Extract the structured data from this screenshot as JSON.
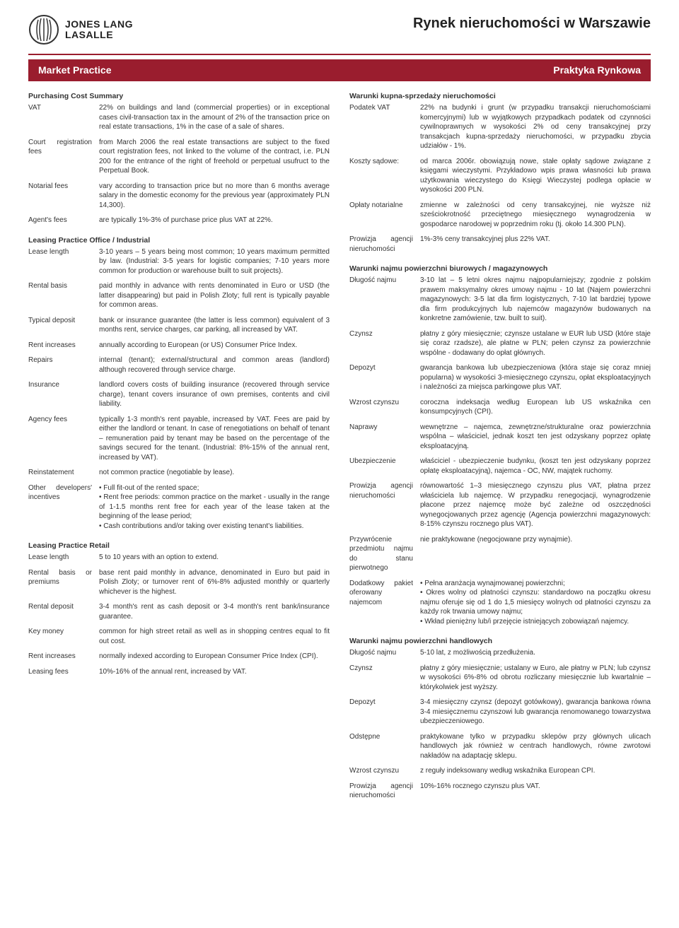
{
  "header": {
    "logo_line1": "JONES LANG",
    "logo_line2": "LASALLE",
    "page_title": "Rynek nieruchomości w Warszawie"
  },
  "section_bar": {
    "left": "Market Practice",
    "right": "Praktyka Rynkowa"
  },
  "left": {
    "purchasing": {
      "title": "Purchasing Cost Summary",
      "rows": [
        {
          "label": "VAT",
          "val": "22% on buildings and land (commercial properties) or in exceptional cases civil-transaction tax in the amount of 2% of the transaction price on real estate transactions, 1% in the case of a sale of shares."
        },
        {
          "label": "Court registration fees",
          "val": "from March 2006 the real estate transactions are subject to the fixed court registration fees, not linked to the volume of the contract, i.e. PLN 200 for the entrance of the right of freehold or perpetual usufruct to the Perpetual Book."
        },
        {
          "label": "Notarial fees",
          "val": "vary according to transaction price but no more than 6 months average salary in the domestic economy for the previous year (approximately PLN 14,300)."
        },
        {
          "label": "Agent's fees",
          "val": "are typically 1%-3% of purchase price plus VAT at 22%."
        }
      ]
    },
    "leasing_office": {
      "title": "Leasing Practice Office / Industrial",
      "rows": [
        {
          "label": "Lease length",
          "val": "3-10 years – 5 years being most common; 10 years maximum permitted by law. (Industrial: 3-5 years for logistic companies; 7-10 years more common for production or warehouse built to suit projects)."
        },
        {
          "label": "Rental basis",
          "val": "paid monthly in advance with rents denominated in Euro or USD (the latter disappearing) but paid in Polish Zloty; full rent is typically payable for common areas."
        },
        {
          "label": "Typical deposit",
          "val": "bank or insurance guarantee (the latter is less common) equivalent of 3 months rent, service charges, car parking, all increased by VAT."
        },
        {
          "label": "Rent increases",
          "val": "annually according to European (or US) Consumer Price Index."
        },
        {
          "label": "Repairs",
          "val": "internal (tenant); external/structural and common areas (landlord) although recovered through service charge."
        },
        {
          "label": "Insurance",
          "val": "landlord covers costs of building insurance (recovered through service charge), tenant covers insurance of own premises, contents and civil liability."
        },
        {
          "label": "Agency fees",
          "val": "typically 1-3 month's rent payable, increased by VAT. Fees are paid by either the landlord or tenant. In case of renegotiations on behalf of tenant – remuneration paid by tenant may be based on the percentage of the savings secured for the tenant. (Industrial: 8%-15% of the annual rent, increased by VAT)."
        },
        {
          "label": "Reinstatement",
          "val": "not common practice (negotiable by lease)."
        },
        {
          "label": "Other developers' incentives",
          "val": "• Full fit-out of the rented space;\n• Rent free periods: common practice on the market - usually in the range of 1-1.5 months rent free for each year of the lease taken at the beginning of the lease period;\n• Cash contributions and/or taking over existing tenant's liabilities."
        }
      ]
    },
    "leasing_retail": {
      "title": "Leasing Practice Retail",
      "rows": [
        {
          "label": "Lease length",
          "val": "5 to 10 years with an option to extend."
        },
        {
          "label": "Rental basis or premiums",
          "val": "base rent paid monthly in advance, denominated in Euro but paid in Polish Zloty; or turnover rent of 6%-8% adjusted monthly or quarterly whichever is the highest."
        },
        {
          "label": "Rental deposit",
          "val": "3-4 month's rent as cash deposit or 3-4 month's rent bank/insurance guarantee."
        },
        {
          "label": "Key money",
          "val": "common for high street retail as well as in shopping centres equal to fit out cost."
        },
        {
          "label": "Rent increases",
          "val": "normally indexed according to European Consumer Price Index (CPI)."
        },
        {
          "label": "Leasing fees",
          "val": "10%-16% of the annual rent, increased by VAT."
        }
      ]
    }
  },
  "right": {
    "purchasing": {
      "title": "Warunki kupna-sprzedaży nieruchomości",
      "rows": [
        {
          "label": "Podatek VAT",
          "val": "22% na budynki i grunt (w przypadku transakcji nieruchomościami komercyjnymi) lub w wyjątkowych przypadkach podatek od czynności cywilnoprawnych w wysokości 2% od ceny transakcyjnej przy transakcjach kupna-sprzedaży nieruchomości, w przypadku zbycia udziałów - 1%."
        },
        {
          "label": "Koszty sądowe:",
          "val": "od marca 2006r. obowiązują nowe, stałe opłaty sądowe związane z księgami wieczystymi. Przykładowo wpis prawa własności lub prawa użytkowania wieczystego do Księgi Wieczystej podlega opłacie w wysokości 200 PLN."
        },
        {
          "label": "Opłaty notarialne",
          "val": "zmienne w zależności od ceny transakcyjnej, nie wyższe niż sześciokrotność przeciętnego miesięcznego wynagrodzenia w gospodarce narodowej w poprzednim roku (tj. około 14.300 PLN)."
        },
        {
          "label": "Prowizja agencji nieruchomości",
          "val": "1%-3% ceny transakcyjnej plus 22% VAT."
        }
      ]
    },
    "leasing_office": {
      "title": "Warunki najmu powierzchni biurowych / magazynowych",
      "rows": [
        {
          "label": "Długość najmu",
          "val": "3-10 lat – 5 letni okres najmu najpopularniejszy; zgodnie z polskim prawem maksymalny okres umowy najmu - 10 lat (Najem powierzchni magazynowych: 3-5 lat dla firm logistycznych, 7-10 lat bardziej typowe dla firm produkcyjnych lub najemców magazynów budowanych na konkretne zamówienie, tzw. built to suit)."
        },
        {
          "label": "Czynsz",
          "val": "płatny z góry miesięcznie; czynsze ustalane w EUR lub USD (które staje się coraz rzadsze), ale płatne w PLN; pełen czynsz za powierzchnie wspólne - dodawany do opłat głównych."
        },
        {
          "label": "Depozyt",
          "val": "gwarancja bankowa lub ubezpieczeniowa (która staje się coraz mniej popularna) w wysokości 3-miesięcznego czynszu, opłat eksploatacyjnych i należności za miejsca parkingowe plus VAT."
        },
        {
          "label": "Wzrost czynszu",
          "val": "coroczna indeksacja według European lub US wskaźnika cen konsumpcyjnych (CPI)."
        },
        {
          "label": "Naprawy",
          "val": "wewnętrzne – najemca, zewnętrzne/strukturalne oraz powierzchnia wspólna – właściciel, jednak koszt ten jest odzyskany poprzez opłatę eksploatacyjną."
        },
        {
          "label": "Ubezpieczenie",
          "val": "właściciel - ubezpieczenie budynku, (koszt ten jest odzyskany poprzez opłatę eksploatacyjną), najemca - OC, NW, majątek ruchomy."
        },
        {
          "label": "Prowizja agencji nieruchomości",
          "val": "równowartość 1–3 miesięcznego czynszu plus VAT, płatna przez właściciela lub najemcę. W przypadku renegocjacji, wynagrodzenie płacone przez najemcę może być zależne od oszczędności wynegocjowanych przez agencję (Agencja powierzchni magazynowych: 8-15% czynszu rocznego plus VAT)."
        },
        {
          "label": "Przywrócenie przedmiotu najmu do stanu pierwotnego",
          "val": "nie praktykowane (negocjowane przy wynajmie)."
        },
        {
          "label": "Dodatkowy pakiet oferowany najemcom",
          "val": "• Pełna aranżacja wynajmowanej powierzchni;\n• Okres wolny od płatności czynszu: standardowo na początku okresu najmu oferuje się od 1 do 1,5 miesięcy wolnych od płatności czynszu za każdy rok trwania umowy najmu;\n• Wkład pieniężny lub/i przejęcie istniejących zobowiązań najemcy."
        }
      ]
    },
    "leasing_retail": {
      "title": "Warunki najmu powierzchni handlowych",
      "rows": [
        {
          "label": "Długość najmu",
          "val": "5-10 lat, z możliwością przedłużenia."
        },
        {
          "label": "Czynsz",
          "val": "płatny z góry miesięcznie; ustalany w Euro, ale płatny w PLN; lub czynsz w wysokości 6%-8% od obrotu rozliczany miesięcznie lub kwartalnie – którykolwiek jest wyższy."
        },
        {
          "label": "Depozyt",
          "val": "3-4 miesięczny czynsz (depozyt gotówkowy), gwarancja bankowa równa 3-4 miesięcznemu czynszowi lub gwarancja renomowanego towarzystwa ubezpieczeniowego."
        },
        {
          "label": "Odstępne",
          "val": "praktykowane tylko w przypadku sklepów przy głównych ulicach handlowych jak również w centrach handlowych, równe zwrotowi nakładów na adaptację sklepu."
        },
        {
          "label": "Wzrost czynszu",
          "val": "z reguły indeksowany według wskaźnika European CPI."
        },
        {
          "label": "Prowizja agencji nieruchomości",
          "val": "10%-16% rocznego czynszu plus VAT."
        }
      ]
    }
  }
}
